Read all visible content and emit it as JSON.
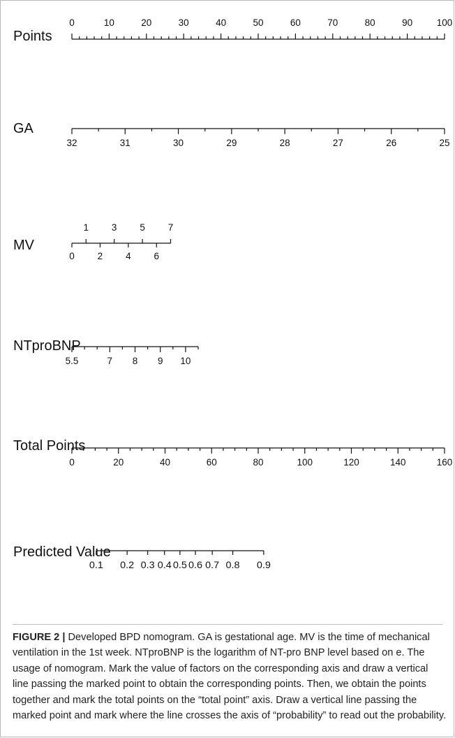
{
  "chart_data": {
    "type": "nomogram",
    "axes": [
      {
        "name": "Points",
        "ticks": [
          "0",
          "10",
          "20",
          "30",
          "40",
          "50",
          "60",
          "70",
          "80",
          "90",
          "100"
        ],
        "range": [
          0,
          100
        ],
        "minor_step": 2,
        "label_side": "above"
      },
      {
        "name": "GA",
        "ticks": [
          "32",
          "31",
          "30",
          "29",
          "28",
          "27",
          "26",
          "25"
        ],
        "range": [
          32,
          25
        ],
        "minor_step": 0.5,
        "label_side": "below"
      },
      {
        "name": "MV",
        "ticks_above": [
          "1",
          "3",
          "5",
          "7"
        ],
        "ticks_below": [
          "0",
          "2",
          "4",
          "6"
        ],
        "range": [
          0,
          7
        ],
        "label_side": "alternating"
      },
      {
        "name": "NTproBNP",
        "ticks": [
          "5.5",
          "7",
          "8",
          "9",
          "10"
        ],
        "range": [
          5.5,
          10.5
        ],
        "minor_step": 0.5,
        "label_side": "below"
      },
      {
        "name": "Total Points",
        "ticks": [
          "0",
          "20",
          "40",
          "60",
          "80",
          "100",
          "120",
          "140",
          "160"
        ],
        "range": [
          0,
          160
        ],
        "minor_step": 5,
        "label_side": "below"
      },
      {
        "name": "Predicted Value",
        "ticks": [
          "0.1",
          "0.2",
          "0.3",
          "0.4",
          "0.5",
          "0.6",
          "0.7",
          "0.8",
          "0.9"
        ],
        "label_side": "below",
        "scale": "logit"
      }
    ]
  },
  "caption": {
    "label": "FIGURE 2 |",
    "text": " Developed BPD nomogram. GA is gestational age. MV is the time of mechanical ventilation in the 1st week. NTproBNP is the logarithm of NT-pro BNP level based on e. The usage of nomogram. Mark the value of factors on the corresponding axis and draw a vertical line passing the marked point to obtain the corresponding points. Then, we obtain the points together and mark the total points on the “total point” axis. Draw a vertical line passing the marked point and mark where the line crosses the axis of “probability” to read out the probability."
  }
}
